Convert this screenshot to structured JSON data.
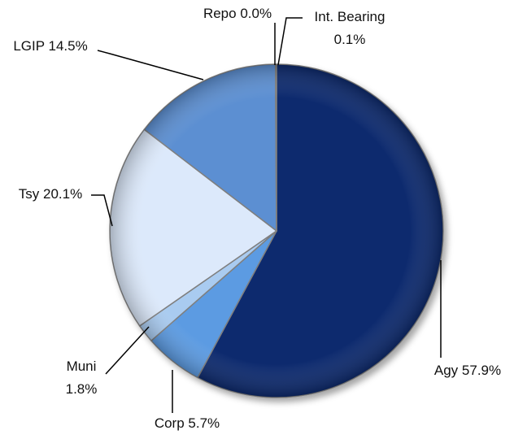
{
  "chart_data": {
    "type": "pie",
    "categories": [
      "Agy",
      "Corp",
      "Muni",
      "Tsy",
      "LGIP",
      "Repo",
      "Int. Bearing"
    ],
    "values": [
      57.9,
      5.7,
      1.8,
      20.1,
      14.5,
      0.0,
      0.1
    ],
    "value_labels": [
      "57.9%",
      "5.7%",
      "1.8%",
      "20.1%",
      "14.5%",
      "0.0%",
      "0.1%"
    ],
    "colors": [
      "#0f2c6e",
      "#5b9be2",
      "#a9cbf0",
      "#dce9fb",
      "#5b8fd2",
      "#3f6fb5",
      "#1e3f86"
    ]
  }
}
